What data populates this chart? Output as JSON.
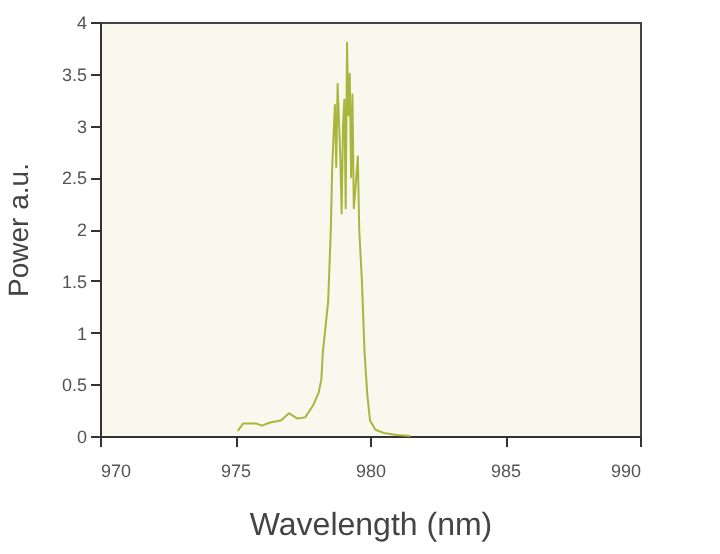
{
  "chart_data": {
    "type": "line",
    "xlabel": "Wavelength (nm)",
    "ylabel": "Power a.u.",
    "x": [
      975.1,
      975.3,
      975.8,
      976.0,
      976.3,
      976.7,
      977.0,
      977.3,
      977.6,
      977.9,
      978.1,
      978.2,
      978.25,
      978.35,
      978.45,
      978.55,
      978.6,
      978.7,
      978.75,
      978.8,
      978.9,
      978.95,
      979.0,
      979.05,
      979.1,
      979.15,
      979.2,
      979.25,
      979.3,
      979.35,
      979.4,
      979.45,
      979.55,
      979.6,
      979.7,
      979.8,
      979.9,
      980.0,
      980.2,
      980.5,
      981.0,
      981.5
    ],
    "series": [
      {
        "color": "#a9b63e",
        "values": [
          0.05,
          0.12,
          0.12,
          0.1,
          0.13,
          0.15,
          0.22,
          0.17,
          0.18,
          0.3,
          0.42,
          0.55,
          0.8,
          1.05,
          1.3,
          2.0,
          2.6,
          3.2,
          2.6,
          3.4,
          2.7,
          2.15,
          3.0,
          3.25,
          2.2,
          3.8,
          3.1,
          3.5,
          2.5,
          3.3,
          2.2,
          2.35,
          2.7,
          2.0,
          1.5,
          0.8,
          0.4,
          0.15,
          0.06,
          0.03,
          0.01,
          0.0
        ]
      }
    ],
    "xlim": [
      970,
      990
    ],
    "xticks": [
      970,
      975,
      980,
      985,
      990
    ],
    "ylim": [
      0,
      4
    ],
    "yticks": [
      0,
      0.5,
      1,
      1.5,
      2,
      2.5,
      3,
      3.5,
      4
    ],
    "line_style": "solid"
  }
}
